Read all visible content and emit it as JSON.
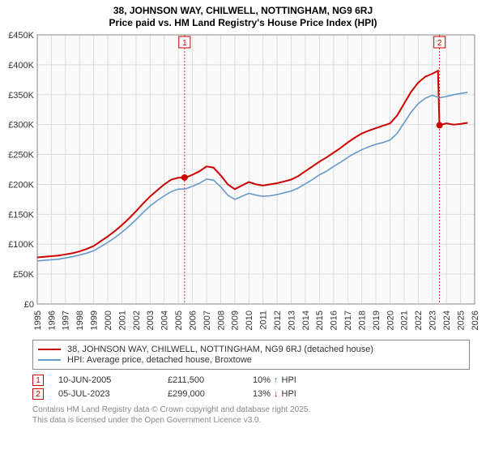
{
  "title_line1": "38, JOHNSON WAY, CHILWELL, NOTTINGHAM, NG9 6RJ",
  "title_line2": "Price paid vs. HM Land Registry's House Price Index (HPI)",
  "chart": {
    "type": "line",
    "background_color": "#fafafa",
    "grid_color": "#dcdcdc",
    "x": {
      "min": 1995,
      "max": 2026,
      "tick_step": 1,
      "label_fontsize": 11,
      "rotation": -90
    },
    "y": {
      "min": 0,
      "max": 450000,
      "tick_step": 50000,
      "labels": [
        "£0",
        "£50K",
        "£100K",
        "£150K",
        "£200K",
        "£250K",
        "£300K",
        "£350K",
        "£400K",
        "£450K"
      ],
      "label_fontsize": 11
    },
    "series": [
      {
        "name": "38, JOHNSON WAY, CHILWELL, NOTTINGHAM, NG9 6RJ (detached house)",
        "color": "#cc0000",
        "line_width": 2,
        "points": [
          [
            1995,
            78000
          ],
          [
            1995.5,
            79000
          ],
          [
            1996,
            80000
          ],
          [
            1996.5,
            81000
          ],
          [
            1997,
            83000
          ],
          [
            1997.5,
            85000
          ],
          [
            1998,
            88000
          ],
          [
            1998.5,
            92000
          ],
          [
            1999,
            97000
          ],
          [
            1999.5,
            105000
          ],
          [
            2000,
            113000
          ],
          [
            2000.5,
            122000
          ],
          [
            2001,
            132000
          ],
          [
            2001.5,
            143000
          ],
          [
            2002,
            155000
          ],
          [
            2002.5,
            168000
          ],
          [
            2003,
            180000
          ],
          [
            2003.5,
            190000
          ],
          [
            2004,
            200000
          ],
          [
            2004.5,
            208000
          ],
          [
            2005,
            211000
          ],
          [
            2005.5,
            211500
          ],
          [
            2006,
            216000
          ],
          [
            2006.5,
            222000
          ],
          [
            2007,
            230000
          ],
          [
            2007.5,
            228000
          ],
          [
            2008,
            215000
          ],
          [
            2008.5,
            200000
          ],
          [
            2009,
            192000
          ],
          [
            2009.5,
            198000
          ],
          [
            2010,
            204000
          ],
          [
            2010.5,
            200000
          ],
          [
            2011,
            198000
          ],
          [
            2011.5,
            200000
          ],
          [
            2012,
            202000
          ],
          [
            2012.5,
            205000
          ],
          [
            2013,
            208000
          ],
          [
            2013.5,
            214000
          ],
          [
            2014,
            222000
          ],
          [
            2014.5,
            230000
          ],
          [
            2015,
            238000
          ],
          [
            2015.5,
            245000
          ],
          [
            2016,
            253000
          ],
          [
            2016.5,
            261000
          ],
          [
            2017,
            270000
          ],
          [
            2017.5,
            278000
          ],
          [
            2018,
            285000
          ],
          [
            2018.5,
            290000
          ],
          [
            2019,
            294000
          ],
          [
            2019.5,
            298000
          ],
          [
            2020,
            302000
          ],
          [
            2020.5,
            315000
          ],
          [
            2021,
            335000
          ],
          [
            2021.5,
            355000
          ],
          [
            2022,
            370000
          ],
          [
            2022.5,
            380000
          ],
          [
            2023,
            385000
          ],
          [
            2023.4,
            390000
          ],
          [
            2023.5,
            299000
          ],
          [
            2024,
            302000
          ],
          [
            2024.5,
            300000
          ],
          [
            2025,
            301000
          ],
          [
            2025.5,
            303000
          ]
        ]
      },
      {
        "name": "HPI: Average price, detached house, Broxtowe",
        "color": "#6699cc",
        "line_width": 1.6,
        "points": [
          [
            1995,
            72000
          ],
          [
            1995.5,
            73000
          ],
          [
            1996,
            74000
          ],
          [
            1996.5,
            75000
          ],
          [
            1997,
            77000
          ],
          [
            1997.5,
            79000
          ],
          [
            1998,
            82000
          ],
          [
            1998.5,
            85000
          ],
          [
            1999,
            89000
          ],
          [
            1999.5,
            96000
          ],
          [
            2000,
            103000
          ],
          [
            2000.5,
            111000
          ],
          [
            2001,
            120000
          ],
          [
            2001.5,
            130000
          ],
          [
            2002,
            141000
          ],
          [
            2002.5,
            153000
          ],
          [
            2003,
            164000
          ],
          [
            2003.5,
            173000
          ],
          [
            2004,
            181000
          ],
          [
            2004.5,
            188000
          ],
          [
            2005,
            192000
          ],
          [
            2005.5,
            192500
          ],
          [
            2006,
            197000
          ],
          [
            2006.5,
            202000
          ],
          [
            2007,
            209000
          ],
          [
            2007.5,
            207000
          ],
          [
            2008,
            196000
          ],
          [
            2008.5,
            182000
          ],
          [
            2009,
            175000
          ],
          [
            2009.5,
            180000
          ],
          [
            2010,
            185000
          ],
          [
            2010.5,
            182000
          ],
          [
            2011,
            180000
          ],
          [
            2011.5,
            181000
          ],
          [
            2012,
            183000
          ],
          [
            2012.5,
            186000
          ],
          [
            2013,
            189000
          ],
          [
            2013.5,
            194000
          ],
          [
            2014,
            201000
          ],
          [
            2014.5,
            208000
          ],
          [
            2015,
            216000
          ],
          [
            2015.5,
            222000
          ],
          [
            2016,
            230000
          ],
          [
            2016.5,
            237000
          ],
          [
            2017,
            245000
          ],
          [
            2017.5,
            252000
          ],
          [
            2018,
            258000
          ],
          [
            2018.5,
            263000
          ],
          [
            2019,
            267000
          ],
          [
            2019.5,
            270000
          ],
          [
            2020,
            274000
          ],
          [
            2020.5,
            285000
          ],
          [
            2021,
            303000
          ],
          [
            2021.5,
            321000
          ],
          [
            2022,
            335000
          ],
          [
            2022.5,
            344000
          ],
          [
            2023,
            349000
          ],
          [
            2023.5,
            345000
          ],
          [
            2024,
            347000
          ],
          [
            2024.5,
            350000
          ],
          [
            2025,
            352000
          ],
          [
            2025.5,
            354000
          ]
        ]
      }
    ],
    "sales": [
      {
        "marker": "1",
        "x": 2005.44,
        "date": "10-JUN-2005",
        "price": 211500,
        "price_label": "£211,500",
        "diff_pct": "10%",
        "direction": "up",
        "diff_suffix": "HPI"
      },
      {
        "marker": "2",
        "x": 2023.51,
        "date": "05-JUL-2023",
        "price": 299000,
        "price_label": "£299,000",
        "diff_pct": "13%",
        "direction": "down",
        "diff_suffix": "HPI"
      }
    ]
  },
  "footer_line1": "Contains HM Land Registry data © Crown copyright and database right 2025.",
  "footer_line2": "This data is licensed under the Open Government Licence v3.0."
}
